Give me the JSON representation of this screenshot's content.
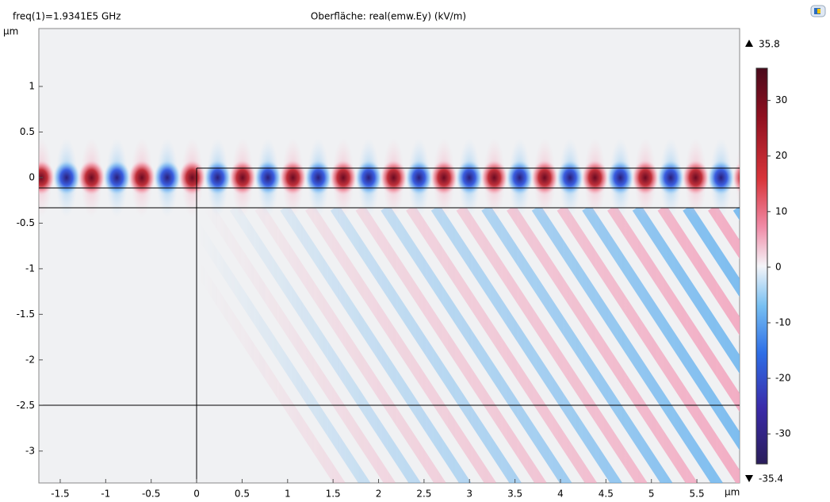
{
  "chart_data": {
    "type": "heatmap",
    "title": "Oberfläche: real(emw.Ey) (kV/m)",
    "subtitle": "freq(1)=1.9341E5 GHz",
    "x_unit": "μm",
    "y_unit": "μm",
    "xlim": [
      -1.735,
      5.97
    ],
    "ylim": [
      -3.35,
      1.635
    ],
    "xticks": [
      -1.5,
      -1,
      -0.5,
      0,
      0.5,
      1,
      1.5,
      2,
      2.5,
      3,
      3.5,
      4,
      4.5,
      5,
      5.5
    ],
    "yticks": [
      1,
      0.5,
      0,
      -0.5,
      -1,
      -1.5,
      -2,
      -2.5,
      -3
    ],
    "colorbar": {
      "max": 35.8,
      "min": -35.4,
      "ticks": [
        30,
        20,
        10,
        0,
        -10,
        -20,
        -30
      ]
    }
  }
}
